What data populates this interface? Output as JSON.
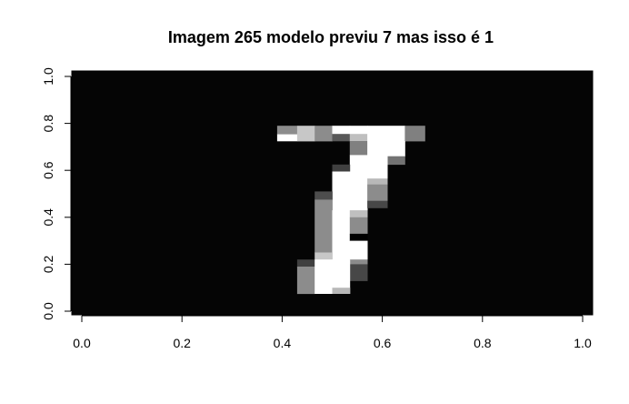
{
  "chart_data": {
    "type": "heatmap",
    "title": "Imagem 265 modelo previu 7 mas isso é 1",
    "xlabel": "",
    "ylabel": "",
    "xlim": [
      0.0,
      1.0
    ],
    "ylim": [
      0.0,
      1.0
    ],
    "x_ticks": [
      "0.0",
      "0.2",
      "0.4",
      "0.6",
      "0.8",
      "1.0"
    ],
    "y_ticks": [
      "0.0",
      "0.2",
      "0.4",
      "0.6",
      "0.8",
      "1.0"
    ],
    "grid": false,
    "colormap": "gray",
    "grid_size": [
      28,
      14
    ],
    "cells": [
      {
        "col": 11,
        "row": 7,
        "value": 0.5
      },
      {
        "col": 11,
        "row": 8,
        "value": 1.0
      },
      {
        "col": 12,
        "row": 7,
        "value": 0.78
      },
      {
        "col": 12,
        "row": 8,
        "value": 0.78
      },
      {
        "col": 13,
        "row": 7,
        "value": 0.55
      },
      {
        "col": 13,
        "row": 8,
        "value": 0.55
      },
      {
        "col": 14,
        "row": 7,
        "value": 0.3
      },
      {
        "col": 14,
        "row": 8,
        "value": 1.0
      },
      {
        "col": 15,
        "row": 7,
        "value": 0.5
      },
      {
        "col": 15,
        "row": 8,
        "value": 0.75
      },
      {
        "col": 15,
        "row": 9,
        "value": 0.5
      },
      {
        "col": 16,
        "row": 8,
        "value": 1.0
      },
      {
        "col": 16,
        "row": 7,
        "value": 1.0
      },
      {
        "col": 16,
        "row": 9,
        "value": 1.0
      },
      {
        "col": 17,
        "row": 8,
        "value": 0.55
      },
      {
        "col": 10,
        "row": 13,
        "value": 0.3
      },
      {
        "col": 12,
        "row": 11,
        "value": 0.5
      },
      {
        "col": 13,
        "row": 12,
        "value": 0.55
      },
      {
        "col": 14,
        "row": 12,
        "value": 0.3
      },
      {
        "col": 12,
        "row": 12,
        "value": 0.3
      }
    ],
    "strokes": [
      {
        "col": 10,
        "row": 11,
        "w": 1,
        "h": 1,
        "value": 0.5
      },
      {
        "col": 10,
        "row": 12,
        "w": 1,
        "h": 1,
        "value": 0.6
      },
      {
        "col": 11,
        "row": 12,
        "w": 1,
        "h": 1,
        "value": 0.52
      },
      {
        "col": 11,
        "row": 11,
        "w": 1,
        "h": 1,
        "value": 1.0
      },
      {
        "col": 11,
        "row": 10,
        "w": 1,
        "h": 1,
        "value": 0.78
      },
      {
        "col": 11,
        "row": 9,
        "w": 1,
        "h": 1,
        "value": 0.55
      },
      {
        "col": 12,
        "row": 9,
        "w": 1,
        "h": 1,
        "value": 1.0
      },
      {
        "col": 12,
        "row": 10,
        "w": 1,
        "h": 1,
        "value": 1.0
      },
      {
        "col": 13,
        "row": 9,
        "w": 1,
        "h": 1,
        "value": 0.55
      },
      {
        "col": 13,
        "row": 10,
        "w": 1,
        "h": 1,
        "value": 0.75
      },
      {
        "col": 13,
        "row": 11,
        "w": 1,
        "h": 1,
        "value": 0.55
      }
    ],
    "glyph_blocks": [
      {
        "x0": 0.39,
        "x1": 0.43,
        "y0": 0.725,
        "y1": 0.755,
        "value": 1.0
      },
      {
        "x0": 0.39,
        "x1": 0.43,
        "y0": 0.755,
        "y1": 0.79,
        "value": 0.55
      },
      {
        "x0": 0.43,
        "x1": 0.465,
        "y0": 0.725,
        "y1": 0.79,
        "value": 0.78
      },
      {
        "x0": 0.465,
        "x1": 0.5,
        "y0": 0.725,
        "y1": 0.79,
        "value": 0.55
      },
      {
        "x0": 0.5,
        "x1": 0.535,
        "y0": 0.755,
        "y1": 0.79,
        "value": 1.0
      },
      {
        "x0": 0.5,
        "x1": 0.535,
        "y0": 0.725,
        "y1": 0.755,
        "value": 0.35
      },
      {
        "x0": 0.535,
        "x1": 0.57,
        "y0": 0.755,
        "y1": 0.79,
        "value": 1.0
      },
      {
        "x0": 0.535,
        "x1": 0.57,
        "y0": 0.725,
        "y1": 0.755,
        "value": 0.75
      },
      {
        "x0": 0.57,
        "x1": 0.645,
        "y0": 0.725,
        "y1": 0.79,
        "value": 1.0
      },
      {
        "x0": 0.645,
        "x1": 0.685,
        "y0": 0.725,
        "y1": 0.79,
        "value": 0.5
      },
      {
        "x0": 0.535,
        "x1": 0.57,
        "y0": 0.665,
        "y1": 0.725,
        "value": 0.5
      },
      {
        "x0": 0.57,
        "x1": 0.645,
        "y0": 0.66,
        "y1": 0.725,
        "value": 1.0
      },
      {
        "x0": 0.61,
        "x1": 0.645,
        "y0": 0.625,
        "y1": 0.66,
        "value": 0.45
      },
      {
        "x0": 0.535,
        "x1": 0.61,
        "y0": 0.565,
        "y1": 0.665,
        "value": 1.0
      },
      {
        "x0": 0.5,
        "x1": 0.535,
        "y0": 0.595,
        "y1": 0.625,
        "value": 0.25
      },
      {
        "x0": 0.5,
        "x1": 0.57,
        "y0": 0.43,
        "y1": 0.595,
        "value": 1.0
      },
      {
        "x0": 0.57,
        "x1": 0.61,
        "y0": 0.54,
        "y1": 0.565,
        "value": 0.72
      },
      {
        "x0": 0.57,
        "x1": 0.61,
        "y0": 0.47,
        "y1": 0.54,
        "value": 0.55
      },
      {
        "x0": 0.57,
        "x1": 0.61,
        "y0": 0.44,
        "y1": 0.47,
        "value": 0.28
      },
      {
        "x0": 0.465,
        "x1": 0.5,
        "y0": 0.475,
        "y1": 0.51,
        "value": 0.3
      },
      {
        "x0": 0.465,
        "x1": 0.5,
        "y0": 0.25,
        "y1": 0.475,
        "value": 0.55
      },
      {
        "x0": 0.5,
        "x1": 0.535,
        "y0": 0.22,
        "y1": 0.43,
        "value": 1.0
      },
      {
        "x0": 0.535,
        "x1": 0.57,
        "y0": 0.4,
        "y1": 0.43,
        "value": 0.75
      },
      {
        "x0": 0.535,
        "x1": 0.57,
        "y0": 0.33,
        "y1": 0.4,
        "value": 0.55
      },
      {
        "x0": 0.535,
        "x1": 0.57,
        "y0": 0.3,
        "y1": 0.33,
        "value": 0.0
      },
      {
        "x0": 0.535,
        "x1": 0.57,
        "y0": 0.22,
        "y1": 0.3,
        "value": 1.0
      },
      {
        "x0": 0.535,
        "x1": 0.57,
        "y0": 0.2,
        "y1": 0.22,
        "value": 0.55
      },
      {
        "x0": 0.535,
        "x1": 0.57,
        "y0": 0.13,
        "y1": 0.2,
        "value": 0.28
      },
      {
        "x0": 0.465,
        "x1": 0.5,
        "y0": 0.22,
        "y1": 0.25,
        "value": 0.78
      },
      {
        "x0": 0.43,
        "x1": 0.465,
        "y0": 0.19,
        "y1": 0.22,
        "value": 0.25
      },
      {
        "x0": 0.43,
        "x1": 0.465,
        "y0": 0.075,
        "y1": 0.19,
        "value": 0.55
      },
      {
        "x0": 0.465,
        "x1": 0.5,
        "y0": 0.075,
        "y1": 0.22,
        "value": 1.0
      },
      {
        "x0": 0.5,
        "x1": 0.535,
        "y0": 0.075,
        "y1": 0.22,
        "value": 1.0
      },
      {
        "x0": 0.5,
        "x1": 0.535,
        "y0": 0.075,
        "y1": 0.1,
        "value": 0.72
      }
    ]
  }
}
